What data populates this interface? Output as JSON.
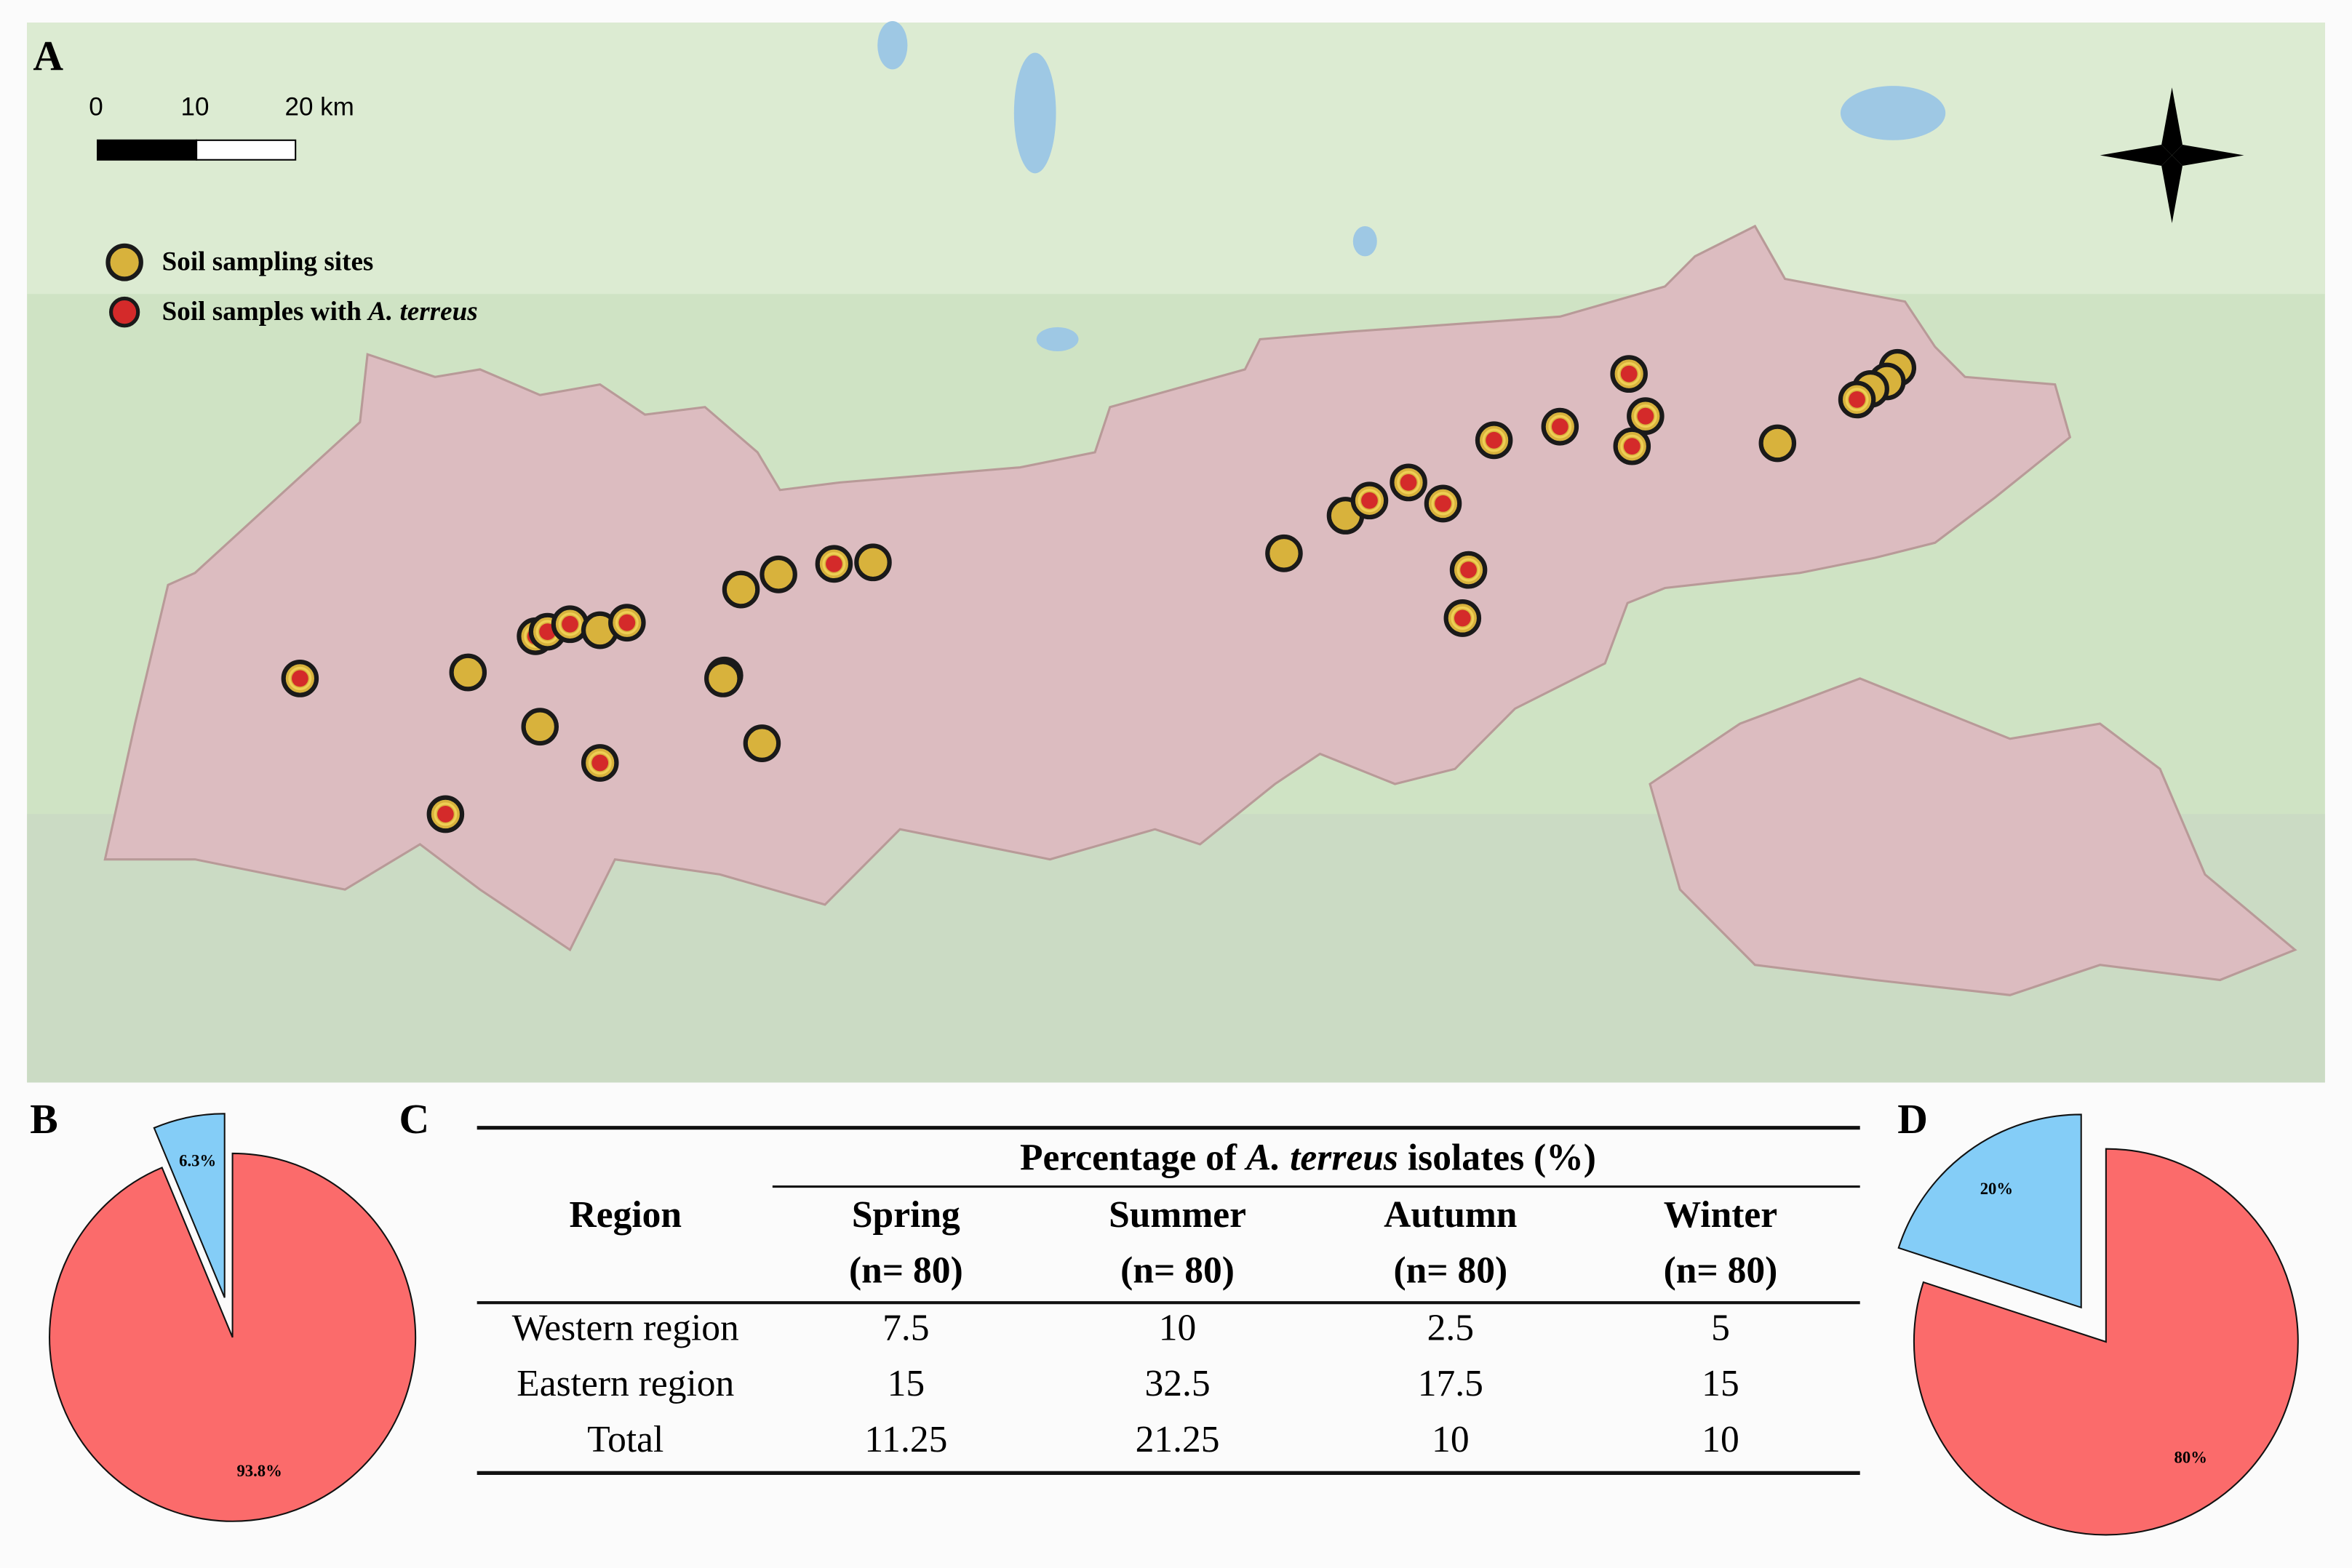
{
  "map": {
    "panel_label": "A",
    "scale_bar": {
      "labels": [
        "0",
        "10",
        "20 km"
      ]
    },
    "legend": [
      {
        "label": "Soil sampling sites"
      },
      {
        "label_parts": [
          "Soil samples with ",
          "A. terreus"
        ]
      }
    ]
  },
  "chart_data": [
    {
      "type": "pie",
      "panel_label": "B",
      "values": [
        93.8,
        6.3
      ],
      "value_labels": [
        "93.8%",
        "6.3%"
      ],
      "colors": [
        "#fb6b6b",
        "#84cdf7"
      ]
    },
    {
      "type": "pie",
      "panel_label": "D",
      "values": [
        80,
        20
      ],
      "value_labels": [
        "80%",
        "20%"
      ],
      "colors": [
        "#fb6b6b",
        "#84cdf7"
      ]
    }
  ],
  "table": {
    "panel_label": "C",
    "header": {
      "region": "Region",
      "group_title_parts": [
        "Percentage of ",
        "A. terreus",
        " isolates (%)"
      ],
      "columns": [
        {
          "season": "Spring",
          "n": "(n= 80)"
        },
        {
          "season": "Summer",
          "n": "(n= 80)"
        },
        {
          "season": "Autumn",
          "n": "(n= 80)"
        },
        {
          "season": "Winter",
          "n": "(n= 80)"
        }
      ]
    },
    "rows": [
      [
        "Western region",
        7.5,
        10,
        2.5,
        5
      ],
      [
        "Eastern region",
        15,
        32.5,
        17.5,
        15
      ],
      [
        "Total",
        11.25,
        21.25,
        10,
        10
      ]
    ]
  }
}
